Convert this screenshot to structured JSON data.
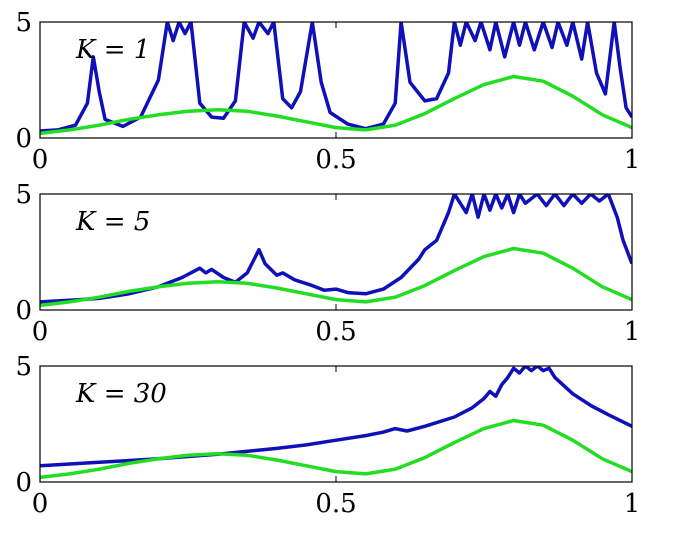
{
  "chart_data": [
    {
      "type": "line",
      "panel_label": "K = 1",
      "xlim": [
        0,
        1
      ],
      "ylim": [
        0,
        5
      ],
      "xticks": [
        "0",
        "0.5",
        "1"
      ],
      "yticks": [
        "0",
        "5"
      ],
      "series": [
        {
          "color": "#1010b8",
          "clip_at_top": true,
          "points": [
            [
              0,
              0.3
            ],
            [
              0.03,
              0.35
            ],
            [
              0.06,
              0.55
            ],
            [
              0.08,
              1.5
            ],
            [
              0.09,
              3.5
            ],
            [
              0.1,
              2.0
            ],
            [
              0.11,
              0.8
            ],
            [
              0.14,
              0.5
            ],
            [
              0.17,
              0.9
            ],
            [
              0.2,
              2.5
            ],
            [
              0.215,
              5
            ],
            [
              0.225,
              4.2
            ],
            [
              0.235,
              5
            ],
            [
              0.245,
              4.5
            ],
            [
              0.255,
              5
            ],
            [
              0.27,
              1.5
            ],
            [
              0.29,
              0.9
            ],
            [
              0.31,
              0.85
            ],
            [
              0.33,
              1.6
            ],
            [
              0.345,
              5
            ],
            [
              0.36,
              4.3
            ],
            [
              0.37,
              5
            ],
            [
              0.385,
              4.5
            ],
            [
              0.395,
              5
            ],
            [
              0.41,
              1.7
            ],
            [
              0.425,
              1.3
            ],
            [
              0.44,
              2.0
            ],
            [
              0.46,
              5
            ],
            [
              0.475,
              2.4
            ],
            [
              0.49,
              1.1
            ],
            [
              0.52,
              0.6
            ],
            [
              0.55,
              0.4
            ],
            [
              0.58,
              0.6
            ],
            [
              0.6,
              1.5
            ],
            [
              0.61,
              5
            ],
            [
              0.625,
              2.4
            ],
            [
              0.65,
              1.6
            ],
            [
              0.67,
              1.7
            ],
            [
              0.69,
              2.8
            ],
            [
              0.7,
              5
            ],
            [
              0.71,
              4.0
            ],
            [
              0.72,
              5
            ],
            [
              0.735,
              4.2
            ],
            [
              0.745,
              5
            ],
            [
              0.76,
              3.8
            ],
            [
              0.77,
              5
            ],
            [
              0.785,
              3.5
            ],
            [
              0.8,
              5
            ],
            [
              0.81,
              4.0
            ],
            [
              0.82,
              5
            ],
            [
              0.835,
              3.8
            ],
            [
              0.85,
              5
            ],
            [
              0.865,
              3.9
            ],
            [
              0.875,
              5
            ],
            [
              0.89,
              4.0
            ],
            [
              0.9,
              5
            ],
            [
              0.915,
              3.4
            ],
            [
              0.925,
              5
            ],
            [
              0.94,
              2.8
            ],
            [
              0.955,
              1.9
            ],
            [
              0.97,
              5
            ],
            [
              0.98,
              3.0
            ],
            [
              0.99,
              1.3
            ],
            [
              1,
              0.9
            ]
          ]
        },
        {
          "color": "#22dd22",
          "points": [
            [
              0,
              0.2
            ],
            [
              0.05,
              0.35
            ],
            [
              0.1,
              0.55
            ],
            [
              0.15,
              0.8
            ],
            [
              0.2,
              1.0
            ],
            [
              0.25,
              1.15
            ],
            [
              0.3,
              1.22
            ],
            [
              0.35,
              1.15
            ],
            [
              0.4,
              0.95
            ],
            [
              0.45,
              0.7
            ],
            [
              0.5,
              0.45
            ],
            [
              0.55,
              0.35
            ],
            [
              0.6,
              0.55
            ],
            [
              0.65,
              1.05
            ],
            [
              0.7,
              1.7
            ],
            [
              0.75,
              2.3
            ],
            [
              0.8,
              2.65
            ],
            [
              0.85,
              2.45
            ],
            [
              0.9,
              1.8
            ],
            [
              0.95,
              1.0
            ],
            [
              1,
              0.45
            ]
          ]
        }
      ]
    },
    {
      "type": "line",
      "panel_label": "K = 5",
      "xlim": [
        0,
        1
      ],
      "ylim": [
        0,
        5
      ],
      "xticks": [
        "0",
        "0.5",
        "1"
      ],
      "yticks": [
        "0",
        "5"
      ],
      "series": [
        {
          "color": "#1010b8",
          "clip_at_top": true,
          "points": [
            [
              0,
              0.35
            ],
            [
              0.05,
              0.42
            ],
            [
              0.1,
              0.5
            ],
            [
              0.15,
              0.7
            ],
            [
              0.2,
              1.0
            ],
            [
              0.24,
              1.4
            ],
            [
              0.27,
              1.8
            ],
            [
              0.28,
              1.6
            ],
            [
              0.29,
              1.75
            ],
            [
              0.31,
              1.4
            ],
            [
              0.33,
              1.2
            ],
            [
              0.35,
              1.6
            ],
            [
              0.37,
              2.6
            ],
            [
              0.38,
              2.0
            ],
            [
              0.4,
              1.5
            ],
            [
              0.41,
              1.6
            ],
            [
              0.43,
              1.3
            ],
            [
              0.46,
              1.05
            ],
            [
              0.48,
              0.85
            ],
            [
              0.5,
              0.9
            ],
            [
              0.52,
              0.75
            ],
            [
              0.55,
              0.7
            ],
            [
              0.58,
              0.9
            ],
            [
              0.61,
              1.4
            ],
            [
              0.64,
              2.2
            ],
            [
              0.65,
              2.6
            ],
            [
              0.67,
              3.0
            ],
            [
              0.69,
              4.2
            ],
            [
              0.7,
              5
            ],
            [
              0.72,
              4.2
            ],
            [
              0.73,
              5
            ],
            [
              0.74,
              4.0
            ],
            [
              0.75,
              5
            ],
            [
              0.76,
              4.3
            ],
            [
              0.77,
              5
            ],
            [
              0.78,
              4.4
            ],
            [
              0.79,
              5
            ],
            [
              0.8,
              4.2
            ],
            [
              0.81,
              5
            ],
            [
              0.82,
              4.6
            ],
            [
              0.84,
              5
            ],
            [
              0.855,
              4.5
            ],
            [
              0.87,
              5
            ],
            [
              0.885,
              4.5
            ],
            [
              0.9,
              5
            ],
            [
              0.915,
              4.6
            ],
            [
              0.93,
              5
            ],
            [
              0.945,
              4.7
            ],
            [
              0.96,
              5
            ],
            [
              0.975,
              4.0
            ],
            [
              0.985,
              3.0
            ],
            [
              1,
              2.0
            ]
          ]
        },
        {
          "color": "#22dd22",
          "points": [
            [
              0,
              0.2
            ],
            [
              0.05,
              0.35
            ],
            [
              0.1,
              0.55
            ],
            [
              0.15,
              0.8
            ],
            [
              0.2,
              1.0
            ],
            [
              0.25,
              1.15
            ],
            [
              0.3,
              1.22
            ],
            [
              0.35,
              1.15
            ],
            [
              0.4,
              0.95
            ],
            [
              0.45,
              0.7
            ],
            [
              0.5,
              0.45
            ],
            [
              0.55,
              0.35
            ],
            [
              0.6,
              0.55
            ],
            [
              0.65,
              1.05
            ],
            [
              0.7,
              1.7
            ],
            [
              0.75,
              2.3
            ],
            [
              0.8,
              2.65
            ],
            [
              0.85,
              2.45
            ],
            [
              0.9,
              1.8
            ],
            [
              0.95,
              1.0
            ],
            [
              1,
              0.45
            ]
          ]
        }
      ]
    },
    {
      "type": "line",
      "panel_label": "K = 30",
      "xlim": [
        0,
        1
      ],
      "ylim": [
        0,
        5
      ],
      "xticks": [
        "0",
        "0.5",
        "1"
      ],
      "yticks": [
        "0",
        "5"
      ],
      "series": [
        {
          "color": "#1010b8",
          "clip_at_top": true,
          "points": [
            [
              0,
              0.7
            ],
            [
              0.1,
              0.85
            ],
            [
              0.2,
              1.0
            ],
            [
              0.3,
              1.2
            ],
            [
              0.4,
              1.45
            ],
            [
              0.45,
              1.6
            ],
            [
              0.5,
              1.8
            ],
            [
              0.55,
              2.0
            ],
            [
              0.58,
              2.15
            ],
            [
              0.6,
              2.3
            ],
            [
              0.62,
              2.2
            ],
            [
              0.65,
              2.4
            ],
            [
              0.7,
              2.8
            ],
            [
              0.73,
              3.2
            ],
            [
              0.75,
              3.6
            ],
            [
              0.76,
              3.9
            ],
            [
              0.77,
              3.7
            ],
            [
              0.78,
              4.2
            ],
            [
              0.79,
              4.5
            ],
            [
              0.8,
              4.9
            ],
            [
              0.81,
              4.7
            ],
            [
              0.82,
              5
            ],
            [
              0.83,
              4.8
            ],
            [
              0.84,
              5
            ],
            [
              0.85,
              4.8
            ],
            [
              0.86,
              4.9
            ],
            [
              0.87,
              4.5
            ],
            [
              0.9,
              3.8
            ],
            [
              0.93,
              3.3
            ],
            [
              0.96,
              2.9
            ],
            [
              1,
              2.4
            ]
          ]
        },
        {
          "color": "#22dd22",
          "points": [
            [
              0,
              0.2
            ],
            [
              0.05,
              0.35
            ],
            [
              0.1,
              0.55
            ],
            [
              0.15,
              0.8
            ],
            [
              0.2,
              1.0
            ],
            [
              0.25,
              1.15
            ],
            [
              0.3,
              1.22
            ],
            [
              0.35,
              1.15
            ],
            [
              0.4,
              0.95
            ],
            [
              0.45,
              0.7
            ],
            [
              0.5,
              0.45
            ],
            [
              0.55,
              0.35
            ],
            [
              0.6,
              0.55
            ],
            [
              0.65,
              1.05
            ],
            [
              0.7,
              1.7
            ],
            [
              0.75,
              2.3
            ],
            [
              0.8,
              2.65
            ],
            [
              0.85,
              2.45
            ],
            [
              0.9,
              1.8
            ],
            [
              0.95,
              1.0
            ],
            [
              1,
              0.45
            ]
          ]
        }
      ]
    }
  ]
}
